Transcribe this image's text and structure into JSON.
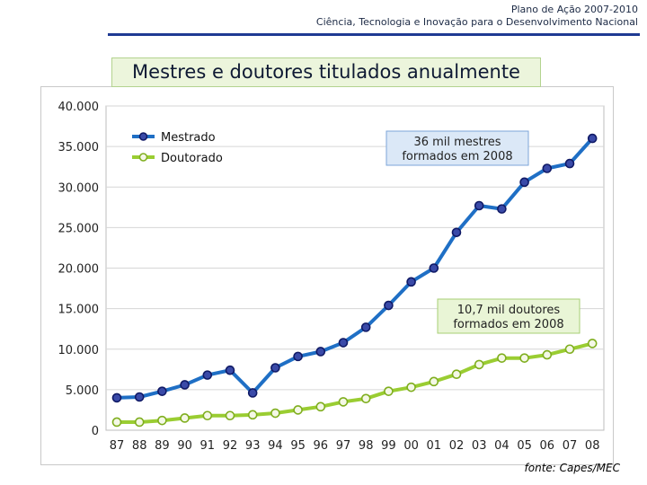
{
  "header": {
    "line1": "Plano de Ação 2007-2010",
    "line2": "Ciência, Tecnologia e Inovação para o Desenvolvimento Nacional"
  },
  "source": "fonte: Capes/MEC",
  "colors": {
    "mestrado": "#1f6fc5",
    "doutorado": "#9acd32",
    "title_bg": "#ecf5dc",
    "annotation_mestrado_bg": "#dbe8f7",
    "annotation_doutorado_bg": "#e9f5d6"
  },
  "chart_data": {
    "type": "line",
    "title": "Mestres e doutores titulados anualmente",
    "xlabel": "",
    "ylabel": "",
    "categories": [
      "87",
      "88",
      "89",
      "90",
      "91",
      "92",
      "93",
      "94",
      "95",
      "96",
      "97",
      "98",
      "99",
      "00",
      "01",
      "02",
      "03",
      "04",
      "05",
      "06",
      "07",
      "08"
    ],
    "yticks": [
      0,
      5000,
      10000,
      15000,
      20000,
      25000,
      30000,
      35000,
      40000
    ],
    "ytick_labels": [
      "0",
      "5.000",
      "10.000",
      "15.000",
      "20.000",
      "25.000",
      "30.000",
      "35.000",
      "40.000"
    ],
    "ylim": [
      0,
      40000
    ],
    "grid": true,
    "legend_position": "top-left",
    "series": [
      {
        "name": "Mestrado",
        "values": [
          4000,
          4100,
          4800,
          5600,
          6800,
          7400,
          4600,
          7700,
          9100,
          9700,
          10800,
          12700,
          15400,
          18300,
          20000,
          24400,
          27700,
          27300,
          30600,
          32300,
          32900,
          36000
        ]
      },
      {
        "name": "Doutorado",
        "values": [
          1000,
          1000,
          1200,
          1500,
          1800,
          1800,
          1900,
          2100,
          2500,
          2900,
          3500,
          3900,
          4800,
          5300,
          6000,
          6900,
          8100,
          8900,
          8900,
          9300,
          10000,
          10700
        ]
      }
    ],
    "annotations": [
      {
        "text_line1": "36 mil mestres",
        "text_line2": "formados em 2008",
        "series": "Mestrado"
      },
      {
        "text_line1": "10,7 mil doutores",
        "text_line2": "formados em 2008",
        "series": "Doutorado"
      }
    ]
  }
}
